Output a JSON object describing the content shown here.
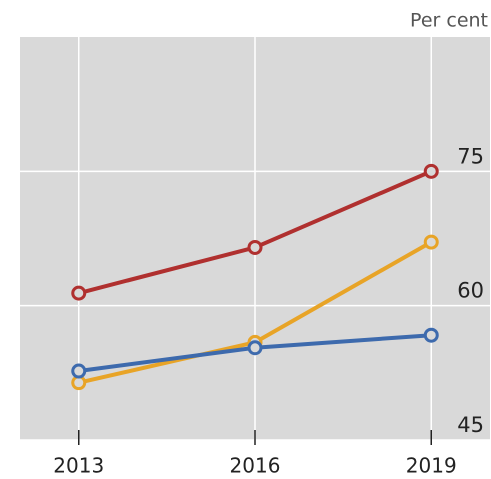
{
  "chart_data": {
    "type": "line",
    "unit_label": "Per cent",
    "x": [
      2013,
      2016,
      2019
    ],
    "xlim": [
      2012,
      2020
    ],
    "xticks": [
      2013,
      2016,
      2019
    ],
    "ylim": [
      45,
      90
    ],
    "yticks": [
      45,
      60,
      75
    ],
    "grid": true,
    "background": "#d9d9d9",
    "series": [
      {
        "color": "#b0302f",
        "values": [
          61.4,
          66.5,
          75
        ]
      },
      {
        "color": "#e8a427",
        "values": [
          51.4,
          55.9,
          67.1
        ]
      },
      {
        "color": "#3d6aad",
        "values": [
          52.7,
          55.3,
          56.7
        ]
      }
    ]
  }
}
